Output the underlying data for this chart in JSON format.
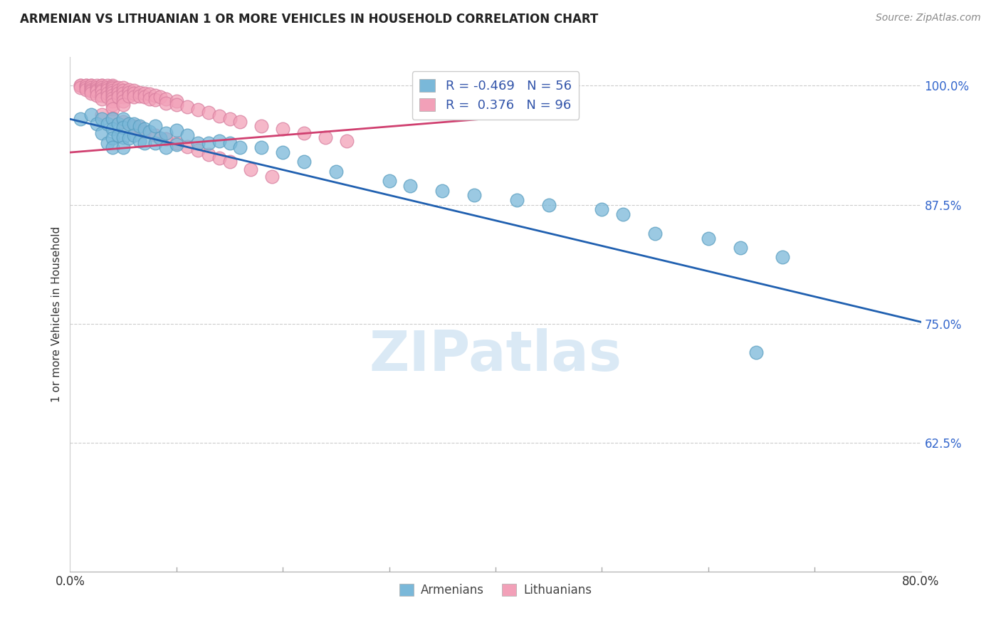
{
  "title": "ARMENIAN VS LITHUANIAN 1 OR MORE VEHICLES IN HOUSEHOLD CORRELATION CHART",
  "source": "Source: ZipAtlas.com",
  "ylabel": "1 or more Vehicles in Household",
  "armenian_color": "#7ab8d9",
  "armenian_edge": "#5a9ec0",
  "lithuanian_color": "#f2a0b8",
  "lithuanian_edge": "#d880a0",
  "armenian_line_color": "#2060b0",
  "lithuanian_line_color": "#d04070",
  "armenian_R": -0.469,
  "armenian_N": 56,
  "lithuanian_R": 0.376,
  "lithuanian_N": 96,
  "legend_armenian": "Armenians",
  "legend_lithuanian": "Lithuanians",
  "xmin": 0.0,
  "xmax": 0.8,
  "ymin": 0.49,
  "ymax": 1.03,
  "ytick_vals": [
    0.625,
    0.75,
    0.875,
    1.0
  ],
  "ytick_labels": [
    "62.5%",
    "75.0%",
    "87.5%",
    "100.0%"
  ],
  "arm_trend_x0": 0.0,
  "arm_trend_x1": 0.8,
  "arm_trend_y0": 0.965,
  "arm_trend_y1": 0.752,
  "lith_trend_x0": 0.0,
  "lith_trend_x1": 0.42,
  "lith_trend_y0": 0.93,
  "lith_trend_y1": 0.968,
  "armenian_x": [
    0.01,
    0.02,
    0.025,
    0.03,
    0.03,
    0.035,
    0.035,
    0.04,
    0.04,
    0.04,
    0.04,
    0.045,
    0.045,
    0.05,
    0.05,
    0.05,
    0.05,
    0.055,
    0.055,
    0.06,
    0.06,
    0.065,
    0.065,
    0.07,
    0.07,
    0.075,
    0.08,
    0.08,
    0.085,
    0.09,
    0.09,
    0.1,
    0.1,
    0.11,
    0.12,
    0.13,
    0.14,
    0.15,
    0.16,
    0.18,
    0.2,
    0.22,
    0.25,
    0.3,
    0.32,
    0.35,
    0.38,
    0.42,
    0.45,
    0.5,
    0.52,
    0.55,
    0.6,
    0.63,
    0.67,
    0.645
  ],
  "armenian_y": [
    0.965,
    0.97,
    0.96,
    0.965,
    0.95,
    0.96,
    0.94,
    0.965,
    0.955,
    0.945,
    0.935,
    0.96,
    0.948,
    0.965,
    0.956,
    0.946,
    0.935,
    0.96,
    0.945,
    0.96,
    0.948,
    0.958,
    0.942,
    0.955,
    0.94,
    0.952,
    0.958,
    0.94,
    0.945,
    0.95,
    0.935,
    0.953,
    0.938,
    0.948,
    0.94,
    0.94,
    0.942,
    0.94,
    0.935,
    0.935,
    0.93,
    0.92,
    0.91,
    0.9,
    0.895,
    0.89,
    0.885,
    0.88,
    0.875,
    0.87,
    0.865,
    0.845,
    0.84,
    0.83,
    0.82,
    0.72
  ],
  "lithuanian_x": [
    0.01,
    0.01,
    0.01,
    0.015,
    0.015,
    0.015,
    0.015,
    0.02,
    0.02,
    0.02,
    0.02,
    0.02,
    0.02,
    0.025,
    0.025,
    0.025,
    0.025,
    0.025,
    0.03,
    0.03,
    0.03,
    0.03,
    0.03,
    0.03,
    0.03,
    0.035,
    0.035,
    0.035,
    0.035,
    0.035,
    0.04,
    0.04,
    0.04,
    0.04,
    0.04,
    0.04,
    0.04,
    0.04,
    0.04,
    0.04,
    0.045,
    0.045,
    0.045,
    0.045,
    0.05,
    0.05,
    0.05,
    0.05,
    0.05,
    0.05,
    0.055,
    0.055,
    0.055,
    0.06,
    0.06,
    0.06,
    0.065,
    0.065,
    0.07,
    0.07,
    0.075,
    0.075,
    0.08,
    0.08,
    0.085,
    0.09,
    0.09,
    0.1,
    0.1,
    0.11,
    0.12,
    0.13,
    0.14,
    0.15,
    0.16,
    0.18,
    0.2,
    0.22,
    0.24,
    0.26,
    0.03,
    0.04,
    0.05,
    0.06,
    0.065,
    0.07,
    0.08,
    0.09,
    0.1,
    0.11,
    0.12,
    0.13,
    0.14,
    0.15,
    0.17,
    0.19
  ],
  "lithuanian_y": [
    1.0,
    1.0,
    0.998,
    1.0,
    1.0,
    0.998,
    0.996,
    1.0,
    1.0,
    0.998,
    0.996,
    0.994,
    0.992,
    1.0,
    0.998,
    0.996,
    0.994,
    0.99,
    1.0,
    1.0,
    0.998,
    0.996,
    0.994,
    0.99,
    0.986,
    1.0,
    0.998,
    0.996,
    0.992,
    0.988,
    1.0,
    0.999,
    0.997,
    0.995,
    0.993,
    0.99,
    0.987,
    0.984,
    0.98,
    0.976,
    0.998,
    0.995,
    0.992,
    0.988,
    0.998,
    0.995,
    0.992,
    0.988,
    0.984,
    0.98,
    0.996,
    0.993,
    0.989,
    0.995,
    0.992,
    0.988,
    0.993,
    0.989,
    0.992,
    0.988,
    0.991,
    0.986,
    0.99,
    0.985,
    0.988,
    0.986,
    0.982,
    0.984,
    0.98,
    0.978,
    0.975,
    0.972,
    0.968,
    0.965,
    0.962,
    0.958,
    0.955,
    0.95,
    0.946,
    0.942,
    0.97,
    0.966,
    0.962,
    0.958,
    0.956,
    0.952,
    0.948,
    0.944,
    0.94,
    0.936,
    0.932,
    0.928,
    0.924,
    0.92,
    0.912,
    0.905
  ]
}
